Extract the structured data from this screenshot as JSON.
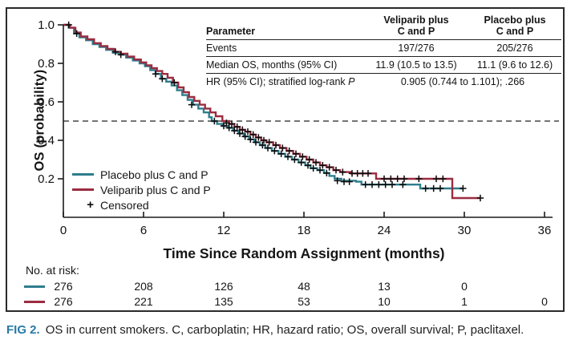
{
  "figure": {
    "caption_label": "FIG 2.",
    "caption_text": "OS in current smokers. C, carboplatin; HR, hazard ratio; OS, overall survival; P, paclitaxel."
  },
  "stats_table": {
    "header": {
      "parameter": "Parameter",
      "veliparib_line1": "Veliparib plus",
      "veliparib_line2": "C and P",
      "placebo_line1": "Placebo plus",
      "placebo_line2": "C and P"
    },
    "rows": [
      {
        "label": "Events",
        "veliparib": "197/276",
        "placebo": "205/276"
      },
      {
        "label": "Median OS, months (95% CI)",
        "veliparib": "11.9 (10.5 to 13.5)",
        "placebo": "11.1 (9.6 to 12.6)"
      },
      {
        "label_prefix": "HR (95% CI); stratified log-rank ",
        "label_italic": "P",
        "combined": "0.905 (0.744 to 1.101); .266"
      }
    ]
  },
  "legend": {
    "items": [
      {
        "label": "Placebo plus C and P",
        "color": "#2e7d8d"
      },
      {
        "label": "Veliparib plus C and P",
        "color": "#9c2c41"
      },
      {
        "symbol": "+",
        "label": "Censored"
      }
    ]
  },
  "axes": {
    "y_label": "OS (probability)",
    "x_label": "Time Since Random Assignment (months)",
    "x_ticks": [
      0,
      6,
      12,
      18,
      24,
      30,
      36
    ],
    "y_ticks": [
      0.2,
      0.4,
      0.6,
      0.8,
      1.0
    ]
  },
  "at_risk": {
    "title": "No. at risk:",
    "rows": [
      {
        "name": "Placebo plus C and P",
        "color": "#2e7d8d",
        "values": [
          276,
          208,
          126,
          48,
          13,
          0
        ]
      },
      {
        "name": "Veliparib plus C and P",
        "color": "#9c2c41",
        "values": [
          276,
          221,
          135,
          53,
          10,
          1,
          0
        ]
      }
    ]
  },
  "chart_data": {
    "type": "line",
    "subtype": "kaplan-meier-step",
    "title": "",
    "xlabel": "Time Since Random Assignment (months)",
    "ylabel": "OS (probability)",
    "xlim": [
      0,
      36
    ],
    "ylim": [
      0,
      1.0
    ],
    "reference_line_y": 0.5,
    "grid": false,
    "legend_position": "lower-left",
    "series": [
      {
        "name": "Placebo plus C and P",
        "color": "#2e7d8d",
        "median_months": 11.1,
        "points": [
          [
            0,
            1.0
          ],
          [
            0.4,
            0.985
          ],
          [
            0.8,
            0.955
          ],
          [
            1.2,
            0.935
          ],
          [
            1.7,
            0.92
          ],
          [
            2.2,
            0.9
          ],
          [
            2.7,
            0.885
          ],
          [
            3.2,
            0.87
          ],
          [
            3.7,
            0.855
          ],
          [
            4.2,
            0.845
          ],
          [
            4.7,
            0.83
          ],
          [
            5.2,
            0.815
          ],
          [
            5.7,
            0.8
          ],
          [
            6.1,
            0.785
          ],
          [
            6.5,
            0.765
          ],
          [
            6.9,
            0.745
          ],
          [
            7.3,
            0.72
          ],
          [
            7.7,
            0.705
          ],
          [
            8.1,
            0.685
          ],
          [
            8.5,
            0.66
          ],
          [
            8.9,
            0.635
          ],
          [
            9.3,
            0.61
          ],
          [
            9.7,
            0.585
          ],
          [
            10.1,
            0.565
          ],
          [
            10.5,
            0.545
          ],
          [
            10.9,
            0.52
          ],
          [
            11.1,
            0.5
          ],
          [
            11.5,
            0.485
          ],
          [
            11.9,
            0.475
          ],
          [
            12.3,
            0.465
          ],
          [
            12.7,
            0.45
          ],
          [
            13.1,
            0.435
          ],
          [
            13.5,
            0.42
          ],
          [
            13.9,
            0.405
          ],
          [
            14.3,
            0.39
          ],
          [
            14.7,
            0.375
          ],
          [
            15.1,
            0.36
          ],
          [
            15.6,
            0.345
          ],
          [
            16.1,
            0.33
          ],
          [
            16.6,
            0.315
          ],
          [
            17.1,
            0.3
          ],
          [
            17.6,
            0.285
          ],
          [
            18.1,
            0.27
          ],
          [
            18.5,
            0.255
          ],
          [
            19.0,
            0.245
          ],
          [
            19.5,
            0.23
          ],
          [
            19.9,
            0.215
          ],
          [
            20.3,
            0.2
          ],
          [
            20.8,
            0.19
          ],
          [
            21.9,
            0.185
          ],
          [
            22.3,
            0.17
          ],
          [
            26.7,
            0.15
          ],
          [
            29.9,
            0.15
          ]
        ],
        "censored": [
          [
            1.0,
            0.955
          ],
          [
            4.3,
            0.845
          ],
          [
            6.9,
            0.745
          ],
          [
            7.4,
            0.72
          ],
          [
            9.6,
            0.585
          ],
          [
            11.3,
            0.5
          ],
          [
            12.0,
            0.475
          ],
          [
            12.4,
            0.465
          ],
          [
            12.8,
            0.45
          ],
          [
            13.2,
            0.435
          ],
          [
            13.6,
            0.42
          ],
          [
            14.0,
            0.405
          ],
          [
            14.4,
            0.39
          ],
          [
            14.9,
            0.375
          ],
          [
            15.3,
            0.36
          ],
          [
            15.8,
            0.345
          ],
          [
            16.3,
            0.33
          ],
          [
            16.8,
            0.315
          ],
          [
            17.3,
            0.3
          ],
          [
            17.8,
            0.285
          ],
          [
            18.3,
            0.27
          ],
          [
            18.7,
            0.255
          ],
          [
            19.2,
            0.245
          ],
          [
            19.7,
            0.23
          ],
          [
            20.5,
            0.19
          ],
          [
            21.0,
            0.185
          ],
          [
            21.4,
            0.185
          ],
          [
            22.6,
            0.17
          ],
          [
            23.1,
            0.17
          ],
          [
            23.6,
            0.17
          ],
          [
            24.1,
            0.17
          ],
          [
            24.6,
            0.17
          ],
          [
            25.4,
            0.17
          ],
          [
            27.1,
            0.15
          ],
          [
            27.7,
            0.15
          ],
          [
            28.2,
            0.15
          ],
          [
            29.9,
            0.15
          ]
        ]
      },
      {
        "name": "Veliparib plus C and P",
        "color": "#9c2c41",
        "median_months": 11.9,
        "points": [
          [
            0,
            1.0
          ],
          [
            0.5,
            0.985
          ],
          [
            0.9,
            0.96
          ],
          [
            1.3,
            0.94
          ],
          [
            1.8,
            0.925
          ],
          [
            2.3,
            0.905
          ],
          [
            2.8,
            0.89
          ],
          [
            3.3,
            0.875
          ],
          [
            3.8,
            0.86
          ],
          [
            4.3,
            0.85
          ],
          [
            4.8,
            0.835
          ],
          [
            5.3,
            0.82
          ],
          [
            5.8,
            0.805
          ],
          [
            6.2,
            0.79
          ],
          [
            6.6,
            0.775
          ],
          [
            7.0,
            0.76
          ],
          [
            7.4,
            0.745
          ],
          [
            7.8,
            0.725
          ],
          [
            8.2,
            0.7
          ],
          [
            8.6,
            0.675
          ],
          [
            9.0,
            0.65
          ],
          [
            9.4,
            0.625
          ],
          [
            9.8,
            0.605
          ],
          [
            10.2,
            0.585
          ],
          [
            10.6,
            0.565
          ],
          [
            11.0,
            0.545
          ],
          [
            11.4,
            0.525
          ],
          [
            11.9,
            0.5
          ],
          [
            12.4,
            0.485
          ],
          [
            12.8,
            0.47
          ],
          [
            13.2,
            0.455
          ],
          [
            13.6,
            0.445
          ],
          [
            14.0,
            0.43
          ],
          [
            14.4,
            0.415
          ],
          [
            14.8,
            0.4
          ],
          [
            15.2,
            0.39
          ],
          [
            15.7,
            0.375
          ],
          [
            16.2,
            0.36
          ],
          [
            16.7,
            0.345
          ],
          [
            17.2,
            0.33
          ],
          [
            17.7,
            0.315
          ],
          [
            18.2,
            0.3
          ],
          [
            18.7,
            0.285
          ],
          [
            19.2,
            0.27
          ],
          [
            19.7,
            0.26
          ],
          [
            20.2,
            0.245
          ],
          [
            20.7,
            0.235
          ],
          [
            21.5,
            0.228
          ],
          [
            23.4,
            0.2
          ],
          [
            29.1,
            0.1
          ],
          [
            31.2,
            0.1
          ]
        ],
        "censored": [
          [
            0.4,
            1.0
          ],
          [
            3.9,
            0.86
          ],
          [
            8.3,
            0.7
          ],
          [
            12.2,
            0.49
          ],
          [
            12.6,
            0.485
          ],
          [
            13.0,
            0.47
          ],
          [
            13.4,
            0.455
          ],
          [
            13.8,
            0.445
          ],
          [
            14.2,
            0.43
          ],
          [
            14.6,
            0.415
          ],
          [
            15.0,
            0.4
          ],
          [
            15.4,
            0.39
          ],
          [
            15.9,
            0.375
          ],
          [
            16.4,
            0.36
          ],
          [
            16.9,
            0.345
          ],
          [
            17.4,
            0.33
          ],
          [
            17.9,
            0.315
          ],
          [
            18.4,
            0.3
          ],
          [
            18.9,
            0.285
          ],
          [
            19.4,
            0.27
          ],
          [
            19.9,
            0.26
          ],
          [
            20.4,
            0.245
          ],
          [
            20.9,
            0.235
          ],
          [
            21.6,
            0.228
          ],
          [
            22.0,
            0.228
          ],
          [
            22.4,
            0.228
          ],
          [
            22.8,
            0.228
          ],
          [
            24.0,
            0.2
          ],
          [
            24.5,
            0.2
          ],
          [
            25.0,
            0.2
          ],
          [
            25.5,
            0.2
          ],
          [
            26.6,
            0.2
          ],
          [
            27.9,
            0.2
          ],
          [
            28.4,
            0.2
          ],
          [
            31.2,
            0.1
          ]
        ]
      }
    ]
  },
  "colors": {
    "placebo_line": "#2e7d8d",
    "veliparib_line": "#9c2c41",
    "censor_mark": "#0b0b0b",
    "axis": "#1b1b1b",
    "caption_label": "#2979a9",
    "border": "#2a2a2a"
  }
}
